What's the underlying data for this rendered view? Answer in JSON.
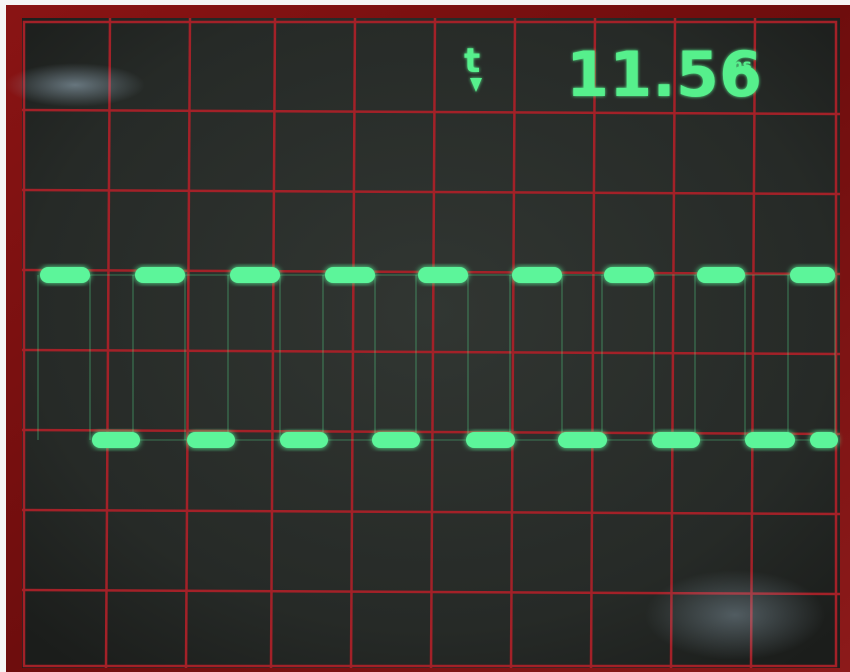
{
  "readout": {
    "symbol": "t",
    "value": "11.56",
    "unit": "ms"
  },
  "colors": {
    "bezel": "#7a1010",
    "screen": "#2b2f2c",
    "grid": "#a32128",
    "trace": "#5cf59a",
    "trace_glow": "#3cf07f",
    "readout": "#56f08c"
  },
  "icons": {
    "delta_time": "delta-triangle-icon"
  }
}
